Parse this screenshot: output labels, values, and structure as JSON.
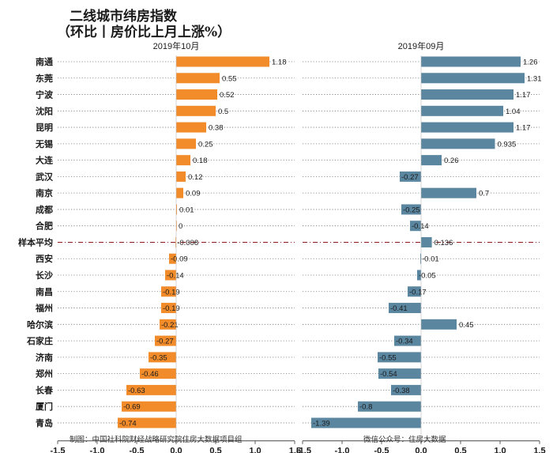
{
  "title_line1": "二线城市纬房指数",
  "title_line2": "（环比丨房价比上月上涨%）",
  "footer_left": "制图：中国社科院财经战略研究院住房大数据项目组",
  "footer_right": "微信公众号：住房大数据",
  "colors": {
    "left": "#F28C2B",
    "right": "#5B86A0",
    "average_line": "#8B1A1A"
  },
  "chart_data": {
    "type": "bar",
    "orientation": "horizontal",
    "categories": [
      "南通",
      "东莞",
      "宁波",
      "沈阳",
      "昆明",
      "无锡",
      "大连",
      "武汉",
      "南京",
      "成都",
      "合肥",
      "样本平均",
      "西安",
      "长沙",
      "南昌",
      "福州",
      "哈尔滨",
      "石家庄",
      "济南",
      "郑州",
      "长春",
      "厦门",
      "青岛"
    ],
    "highlight_category": "样本平均",
    "series": [
      {
        "name": "2019年10月",
        "xlim": [
          -1.5,
          1.5
        ],
        "ticks": [
          -1.5,
          -1.0,
          -0.5,
          0.0,
          0.5,
          1.0,
          1.5
        ],
        "tick_labels": [
          "-1.5",
          "-1.0",
          "-0.5",
          "0.0",
          "0.5",
          "1.0",
          "1.5"
        ],
        "values": [
          1.18,
          0.55,
          0.52,
          0.5,
          0.38,
          0.25,
          0.18,
          0.12,
          0.09,
          0.01,
          0,
          -0.008,
          -0.09,
          -0.14,
          -0.19,
          -0.19,
          -0.21,
          -0.27,
          -0.35,
          -0.46,
          -0.63,
          -0.69,
          -0.74
        ],
        "value_labels": [
          "1.18",
          "0.55",
          "0.52",
          "0.5",
          "0.38",
          "0.25",
          "0.18",
          "0.12",
          "0.09",
          "0.01",
          "0",
          "-0.008",
          "-0.09",
          "-0.14",
          "-0.19",
          "-0.19",
          "-0.21",
          "-0.27",
          "-0.35",
          "-0.46",
          "-0.63",
          "-0.69",
          "-0.74"
        ]
      },
      {
        "name": "2019年09月",
        "xlim": [
          -1.5,
          1.5
        ],
        "ticks": [
          -1.5,
          -1.0,
          -0.5,
          0.0,
          0.5,
          1.0,
          1.5
        ],
        "tick_labels": [
          "-1.5",
          "-1.0",
          "-0.5",
          "0.0",
          "0.5",
          "1.0",
          "1.5"
        ],
        "values": [
          1.26,
          1.31,
          1.17,
          1.04,
          1.17,
          0.935,
          0.26,
          -0.27,
          0.7,
          -0.25,
          -0.14,
          0.136,
          -0.01,
          -0.05,
          -0.17,
          -0.41,
          0.45,
          -0.34,
          -0.55,
          -0.54,
          -0.38,
          -0.8,
          -1.39
        ],
        "value_labels": [
          "1.26",
          "1.31",
          "1.17",
          "1.04",
          "1.17",
          "0.935",
          "0.26",
          "-0.27",
          "0.7",
          "-0.25",
          "-0.14",
          "0.136",
          "-0.01",
          "-0.05",
          "-0.17",
          "-0.41",
          "0.45",
          "-0.34",
          "-0.55",
          "-0.54",
          "-0.38",
          "-0.8",
          "-1.39"
        ]
      }
    ]
  }
}
